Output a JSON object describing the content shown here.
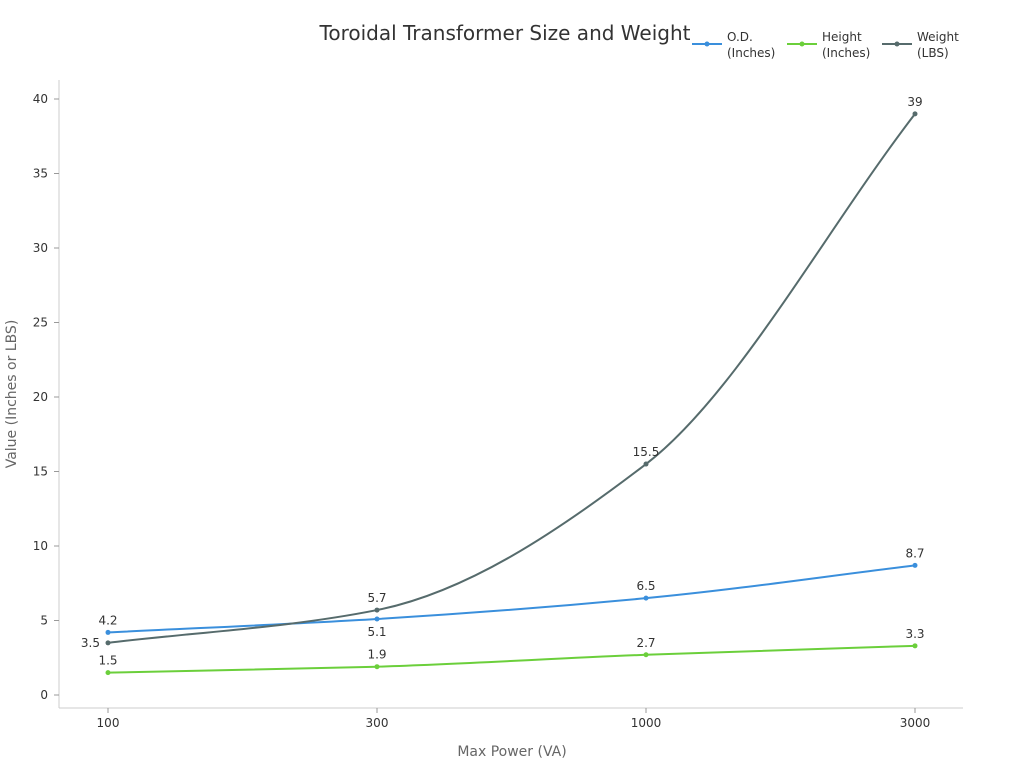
{
  "chart_data": {
    "type": "line",
    "title": "Toroidal Transformer Size and Weight",
    "xlabel": "Max Power (VA)",
    "ylabel": "Value (Inches or LBS)",
    "categories": [
      "100",
      "300",
      "1000",
      "3000"
    ],
    "ylim": [
      0,
      40
    ],
    "yticks": [
      0,
      5,
      10,
      15,
      20,
      25,
      30,
      35,
      40
    ],
    "grid": false,
    "legend_position": "top-right",
    "series": [
      {
        "name": "O.D. (Inches)",
        "name_lines": [
          "O.D.",
          "(Inches)"
        ],
        "color": "#3a8fdc",
        "values": [
          4.2,
          5.1,
          6.5,
          8.7
        ],
        "labels": [
          "4.2",
          "5.1",
          "6.5",
          "8.7"
        ]
      },
      {
        "name": "Height (Inches)",
        "name_lines": [
          "Height",
          "(Inches)"
        ],
        "color": "#6bcf3b",
        "values": [
          1.5,
          1.9,
          2.7,
          3.3
        ],
        "labels": [
          "1.5",
          "1.9",
          "2.7",
          "3.3"
        ]
      },
      {
        "name": "Weight (LBS)",
        "name_lines": [
          "Weight",
          "(LBS)"
        ],
        "color": "#566b6c",
        "values": [
          3.5,
          5.7,
          15.5,
          39
        ],
        "labels": [
          "3.5",
          "5.7",
          "15.5",
          "39"
        ]
      }
    ]
  }
}
